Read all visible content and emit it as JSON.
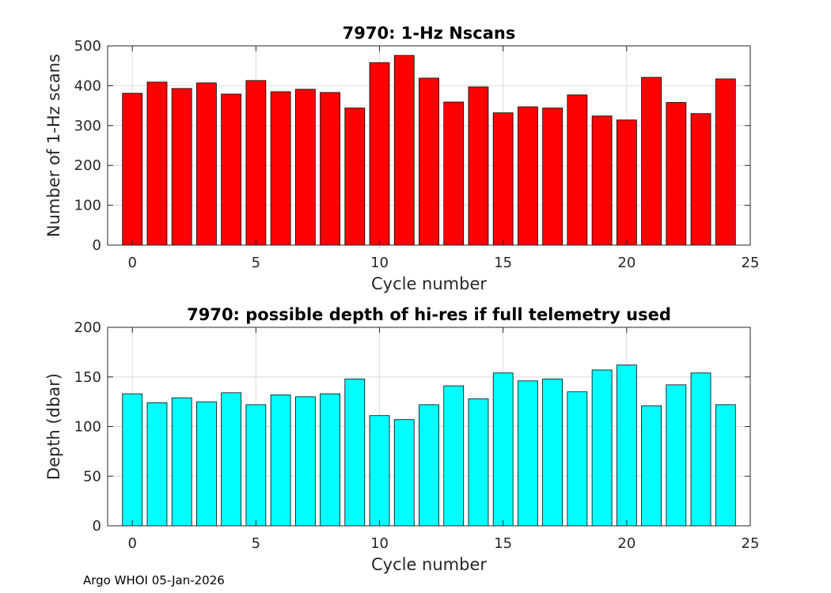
{
  "chart_data": [
    {
      "type": "bar",
      "title": "7970: 1-Hz Nscans",
      "xlabel": "Cycle number",
      "ylabel": "Number of 1-Hz scans",
      "bar_color": "#ff0000",
      "xlim": [
        -1,
        25
      ],
      "ylim": [
        0,
        500
      ],
      "xticks": [
        0,
        5,
        10,
        15,
        20,
        25
      ],
      "yticks": [
        0,
        100,
        200,
        300,
        400,
        500
      ],
      "grid": true,
      "x": [
        0,
        1,
        2,
        3,
        4,
        5,
        6,
        7,
        8,
        9,
        10,
        11,
        12,
        13,
        14,
        15,
        16,
        17,
        18,
        19,
        20,
        21,
        22,
        23,
        24
      ],
      "values": [
        381,
        409,
        393,
        407,
        379,
        413,
        385,
        391,
        383,
        344,
        458,
        476,
        419,
        359,
        397,
        332,
        347,
        344,
        377,
        324,
        314,
        421,
        358,
        330,
        417
      ]
    },
    {
      "type": "bar",
      "title": "7970: possible depth of hi-res if full telemetry used",
      "xlabel": "Cycle number",
      "ylabel": "Depth (dbar)",
      "bar_color": "#00ffff",
      "xlim": [
        -1,
        25
      ],
      "ylim": [
        0,
        200
      ],
      "xticks": [
        0,
        5,
        10,
        15,
        20,
        25
      ],
      "yticks": [
        0,
        50,
        100,
        150,
        200
      ],
      "grid": true,
      "x": [
        0,
        1,
        2,
        3,
        4,
        5,
        6,
        7,
        8,
        9,
        10,
        11,
        12,
        13,
        14,
        15,
        16,
        17,
        18,
        19,
        20,
        21,
        22,
        23,
        24
      ],
      "values": [
        133,
        124,
        129,
        125,
        134,
        122,
        132,
        130,
        133,
        148,
        111,
        107,
        122,
        141,
        128,
        154,
        146,
        148,
        135,
        157,
        162,
        121,
        142,
        154,
        122
      ]
    }
  ],
  "footer": {
    "text": "Argo WHOI 05-Jan-2026"
  }
}
